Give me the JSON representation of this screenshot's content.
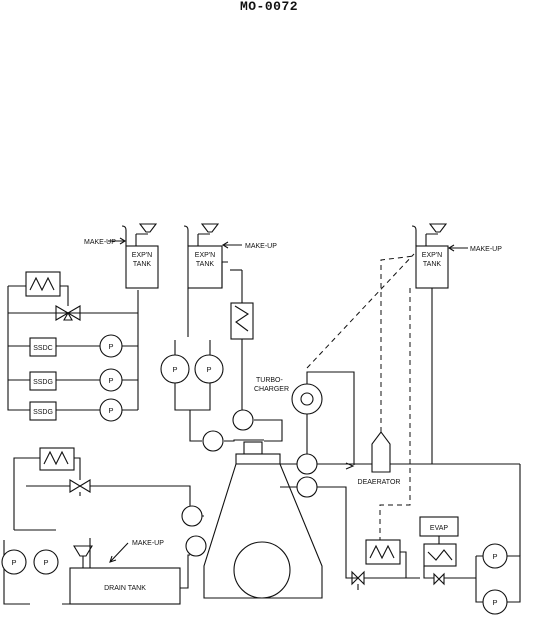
{
  "header": {
    "title": "MO-0072"
  },
  "labels": {
    "exp_tank": [
      "EXP'N",
      "TANK"
    ],
    "make_up": "MAKE-UP",
    "make_up_lower": "MAKE-UP",
    "ssdc_1": "SSDC",
    "ssdg_2": "SSDG",
    "ssdg_3": "SSDG",
    "pump": "P",
    "turbocharger": [
      "TURBO-",
      "CHARGER"
    ],
    "deaerator": "DEAERATOR",
    "evap": "EVAP",
    "drain_tank": "DRAIN TANK"
  }
}
